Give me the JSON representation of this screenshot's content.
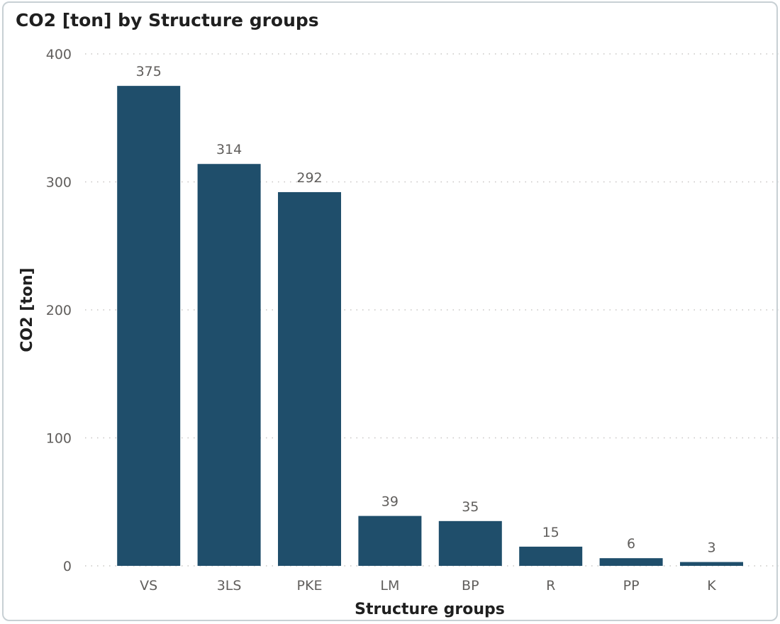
{
  "chart_data": {
    "type": "bar",
    "title": "CO2 [ton] by Structure groups",
    "xlabel": "Structure groups",
    "ylabel": "CO2 [ton]",
    "categories": [
      "VS",
      "3LS",
      "PKE",
      "LM",
      "BP",
      "R",
      "PP",
      "K"
    ],
    "values": [
      375,
      314,
      292,
      39,
      35,
      15,
      6,
      3
    ],
    "data_labels": [
      "375",
      "314",
      "292",
      "39",
      "35",
      "15",
      "6",
      "3"
    ],
    "yticks": [
      0,
      100,
      200,
      300,
      400
    ],
    "ytick_labels": [
      "0",
      "100",
      "200",
      "300",
      "400"
    ],
    "ylim": [
      0,
      400
    ],
    "grid": true,
    "grid_style": "dotted",
    "bar_color": "#1f4e6b"
  }
}
